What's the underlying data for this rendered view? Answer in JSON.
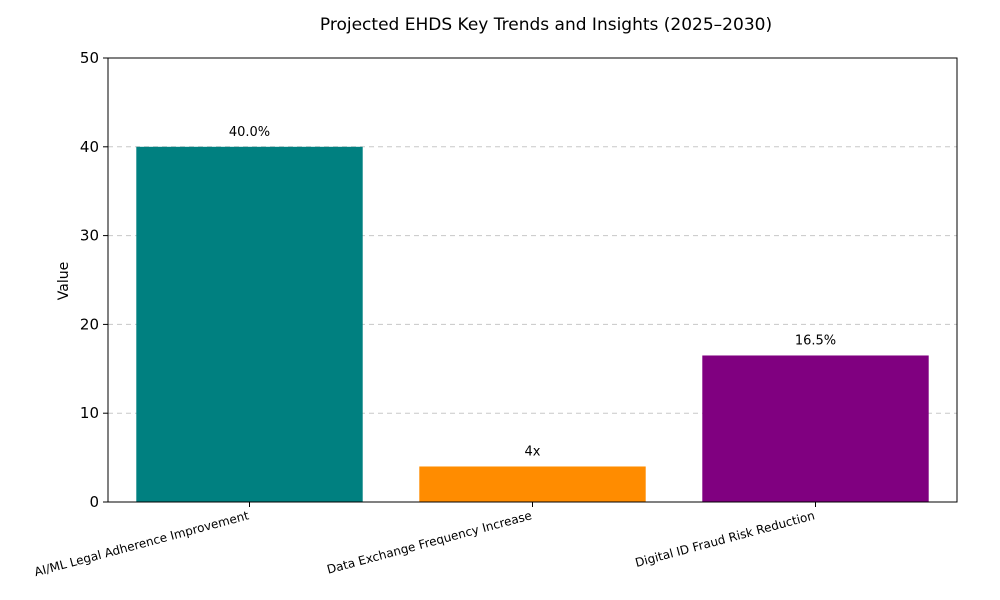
{
  "chart_data": {
    "type": "bar",
    "title": "Projected EHDS Key Trends and Insights (2025–2030)",
    "xlabel": "",
    "ylabel": "Value",
    "ylim": [
      0,
      50
    ],
    "yticks": [
      0,
      10,
      20,
      30,
      40,
      50
    ],
    "grid": true,
    "categories": [
      "AI/ML Legal Adherence Improvement",
      "Data Exchange Frequency Increase",
      "Digital ID Fraud Risk Reduction"
    ],
    "values": [
      40,
      4,
      16.5
    ],
    "data_labels": [
      "40.0%",
      "4x",
      "16.5%"
    ],
    "colors": [
      "#008080",
      "#ff8c00",
      "#800080"
    ]
  }
}
